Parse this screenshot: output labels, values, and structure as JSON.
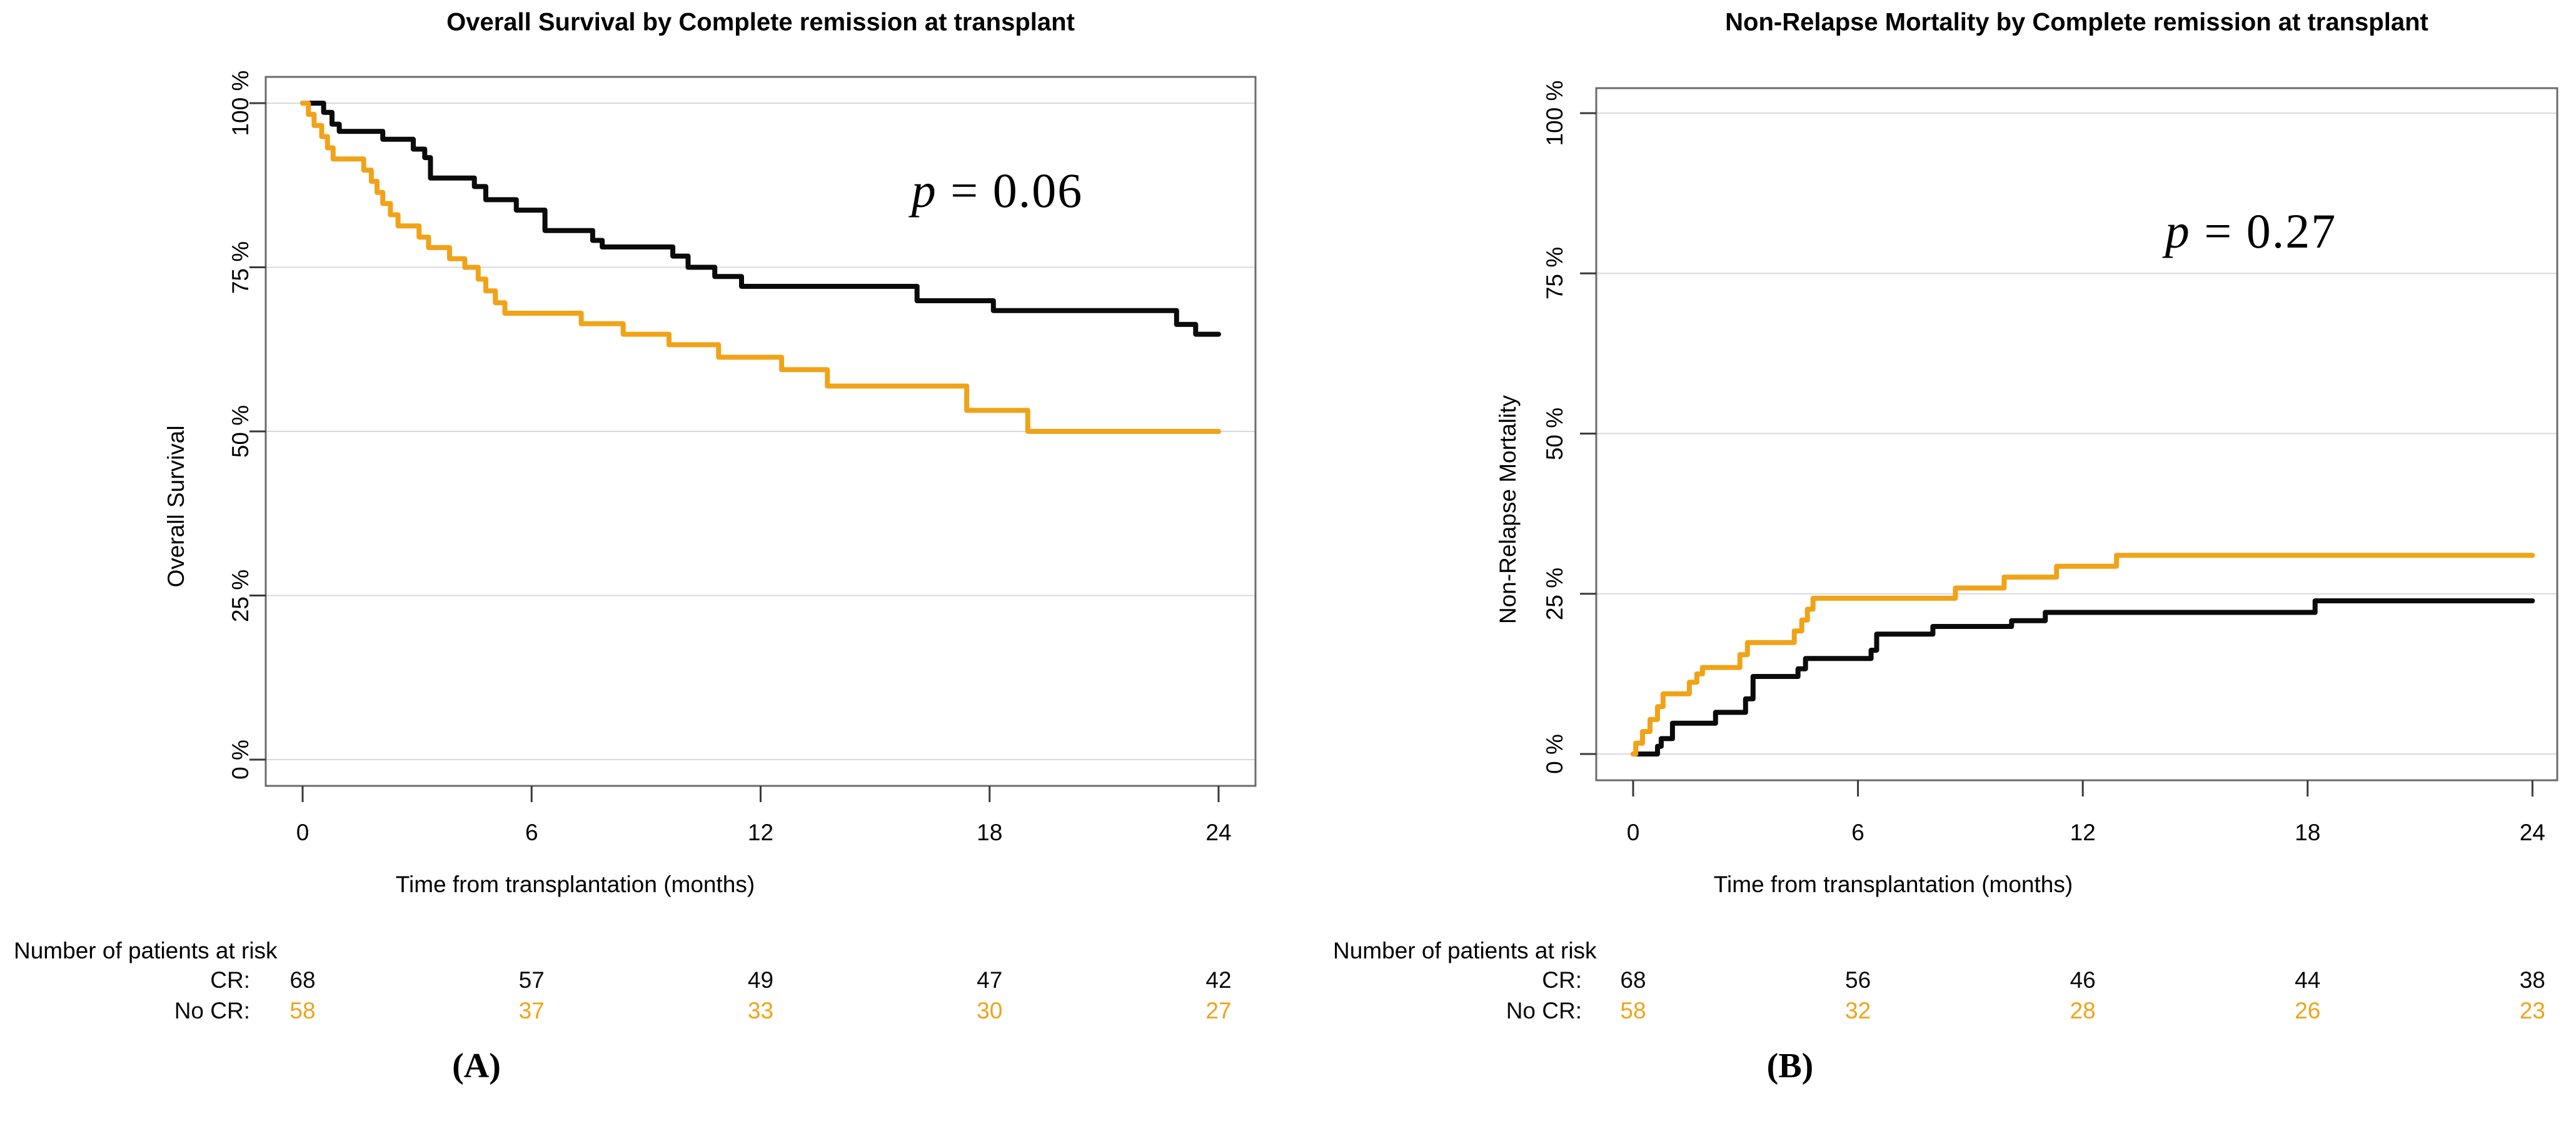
{
  "figure_background": "#ffffff",
  "colors": {
    "cr": "#0b0b0b",
    "no_cr": "#F0A318",
    "grid": "#d9d9d9",
    "frame": "#6b6b6b",
    "tick": "#3a3a3a"
  },
  "panels": [
    {
      "caption": "(A)",
      "title": "Overall Survival by Complete remission at transplant",
      "ylabel": "Overall Survival",
      "xlabel": "Time from transplantation (months)",
      "p_var": "p",
      "p_rest": " = 0.06"
    },
    {
      "caption": "(B)",
      "title": "Non-Relapse Mortality by Complete remission at transplant",
      "ylabel": "Non-Relapse Mortality",
      "xlabel": "Time from transplantation (months)",
      "p_var": "p",
      "p_rest": " = 0.27"
    }
  ],
  "chart_data": [
    {
      "type": "line",
      "subtype": "kaplan-meier-step",
      "title": "Overall Survival by Complete remission at transplant",
      "xlabel": "Time from transplantation (months)",
      "ylabel": "Overall Survival",
      "annotation": "p = 0.06",
      "xlim": [
        0,
        24
      ],
      "ylim": [
        0,
        100
      ],
      "x_ticks": [
        0,
        6,
        12,
        18,
        24
      ],
      "y_tick_pcts": [
        0,
        25,
        50,
        75,
        100
      ],
      "y_tick_labels": [
        "0 %",
        "25 %",
        "50 %",
        "75 %",
        "100 %"
      ],
      "grid": true,
      "legend_position": "none",
      "series": [
        {
          "name": "CR",
          "color_key": "cr",
          "points": [
            [
              0,
              100
            ],
            [
              0.55,
              98.6
            ],
            [
              0.77,
              96.8
            ],
            [
              0.96,
              95.7
            ],
            [
              2.1,
              94.5
            ],
            [
              2.9,
              93
            ],
            [
              3.2,
              91.7
            ],
            [
              3.35,
              88.6
            ],
            [
              4.5,
              87.3
            ],
            [
              4.8,
              85.3
            ],
            [
              5.6,
              83.7
            ],
            [
              6.35,
              80.6
            ],
            [
              7.6,
              79.1
            ],
            [
              7.85,
              78.1
            ],
            [
              9.7,
              76.7
            ],
            [
              10.1,
              75
            ],
            [
              10.8,
              73.6
            ],
            [
              11.5,
              72.1
            ],
            [
              16.1,
              69.9
            ],
            [
              18.1,
              68.4
            ],
            [
              22.9,
              66.3
            ],
            [
              23.4,
              64.8
            ],
            [
              24,
              64.8
            ]
          ]
        },
        {
          "name": "No CR",
          "color_key": "no_cr",
          "points": [
            [
              0,
              100
            ],
            [
              0.15,
              98.3
            ],
            [
              0.3,
              96.6
            ],
            [
              0.5,
              94.9
            ],
            [
              0.65,
              93.2
            ],
            [
              0.8,
              91.5
            ],
            [
              1.6,
              89.8
            ],
            [
              1.8,
              88.1
            ],
            [
              1.95,
              86.4
            ],
            [
              2.1,
              84.7
            ],
            [
              2.3,
              83
            ],
            [
              2.5,
              81.3
            ],
            [
              3.05,
              79.6
            ],
            [
              3.3,
              78
            ],
            [
              3.85,
              76.3
            ],
            [
              4.25,
              75
            ],
            [
              4.6,
              73.2
            ],
            [
              4.8,
              71.4
            ],
            [
              5.05,
              69.6
            ],
            [
              5.3,
              68
            ],
            [
              7.3,
              66.4
            ],
            [
              8.4,
              64.8
            ],
            [
              9.6,
              63.2
            ],
            [
              10.9,
              61.3
            ],
            [
              12.55,
              59.4
            ],
            [
              13.75,
              56.9
            ],
            [
              17.4,
              53.2
            ],
            [
              19,
              50
            ],
            [
              24,
              50
            ]
          ]
        }
      ],
      "number_at_risk": {
        "header": "Number of patients at risk",
        "rows": [
          {
            "label": "CR:",
            "color_key": "cr",
            "values": [
              68,
              57,
              49,
              47,
              42
            ]
          },
          {
            "label": "No CR:",
            "color_key": "no_cr",
            "values": [
              58,
              37,
              33,
              30,
              27
            ]
          }
        ]
      }
    },
    {
      "type": "line",
      "subtype": "cumulative-incidence-step",
      "title": "Non-Relapse Mortality by Complete remission at transplant",
      "xlabel": "Time from transplantation (months)",
      "ylabel": "Non-Relapse Mortality",
      "annotation": "p = 0.27",
      "xlim": [
        0,
        24
      ],
      "ylim": [
        0,
        100
      ],
      "x_ticks": [
        0,
        6,
        12,
        18,
        24
      ],
      "y_tick_pcts": [
        0,
        25,
        50,
        75,
        100
      ],
      "y_tick_labels": [
        "0 %",
        "25 %",
        "50 %",
        "75 %",
        "100 %"
      ],
      "grid": true,
      "legend_position": "none",
      "series": [
        {
          "name": "CR",
          "color_key": "cr",
          "points": [
            [
              0,
              0
            ],
            [
              0.65,
              1.2
            ],
            [
              0.75,
              2.4
            ],
            [
              1.05,
              4.8
            ],
            [
              2.2,
              6.5
            ],
            [
              3,
              8.6
            ],
            [
              3.2,
              12.1
            ],
            [
              4.4,
              13.3
            ],
            [
              4.6,
              14.9
            ],
            [
              6.35,
              16.2
            ],
            [
              6.5,
              18.7
            ],
            [
              8,
              19.9
            ],
            [
              10.1,
              20.8
            ],
            [
              11,
              22.1
            ],
            [
              18.2,
              23.9
            ],
            [
              24,
              23.9
            ]
          ]
        },
        {
          "name": "No CR",
          "color_key": "no_cr",
          "points": [
            [
              0,
              0
            ],
            [
              0.07,
              1.7
            ],
            [
              0.25,
              3.5
            ],
            [
              0.45,
              5.4
            ],
            [
              0.65,
              7.4
            ],
            [
              0.8,
              9.4
            ],
            [
              1.5,
              11.2
            ],
            [
              1.7,
              12.5
            ],
            [
              1.85,
              13.5
            ],
            [
              2.85,
              15.5
            ],
            [
              3.05,
              17.4
            ],
            [
              4.3,
              19.2
            ],
            [
              4.5,
              20.9
            ],
            [
              4.65,
              22.6
            ],
            [
              4.8,
              24.3
            ],
            [
              8.6,
              25.9
            ],
            [
              9.9,
              27.6
            ],
            [
              11.3,
              29.3
            ],
            [
              12.9,
              31
            ],
            [
              24,
              31
            ]
          ]
        }
      ],
      "number_at_risk": {
        "header": "Number of patients at risk",
        "rows": [
          {
            "label": "CR:",
            "color_key": "cr",
            "values": [
              68,
              56,
              46,
              44,
              38
            ]
          },
          {
            "label": "No CR:",
            "color_key": "no_cr",
            "values": [
              58,
              32,
              28,
              26,
              23
            ]
          }
        ]
      }
    }
  ]
}
